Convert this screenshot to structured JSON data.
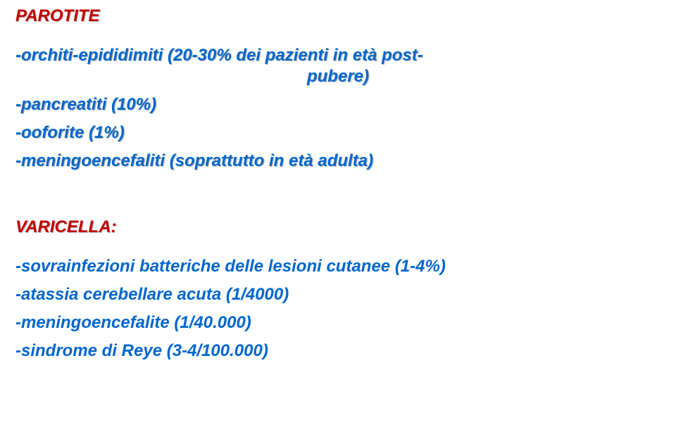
{
  "parotite": {
    "title": "PAROTITE",
    "line1a": "-orchiti-epididimiti (20-30% dei pazienti in età post-",
    "line1b": "pubere)",
    "line2": "-pancreatiti (10%)",
    "line3": "-ooforite (1%)",
    "line4": "-meningoencefaliti (soprattutto in età adulta)"
  },
  "varicella": {
    "title": "VARICELLA:",
    "line1": "-sovrainfezioni batteriche delle lesioni cutanee (1-4%)",
    "line2": "-atassia cerebellare acuta (1/4000)",
    "line3": "-meningoencefalite (1/40.000)",
    "line4": "-sindrome di Reye (3-4/100.000)"
  },
  "colors": {
    "blue": "#0066cc",
    "red": "#c00000",
    "background": "#ffffff"
  },
  "fonts": {
    "family": "Verdana",
    "size_pt_estimate": 18,
    "weight": "bold",
    "style": "italic"
  }
}
